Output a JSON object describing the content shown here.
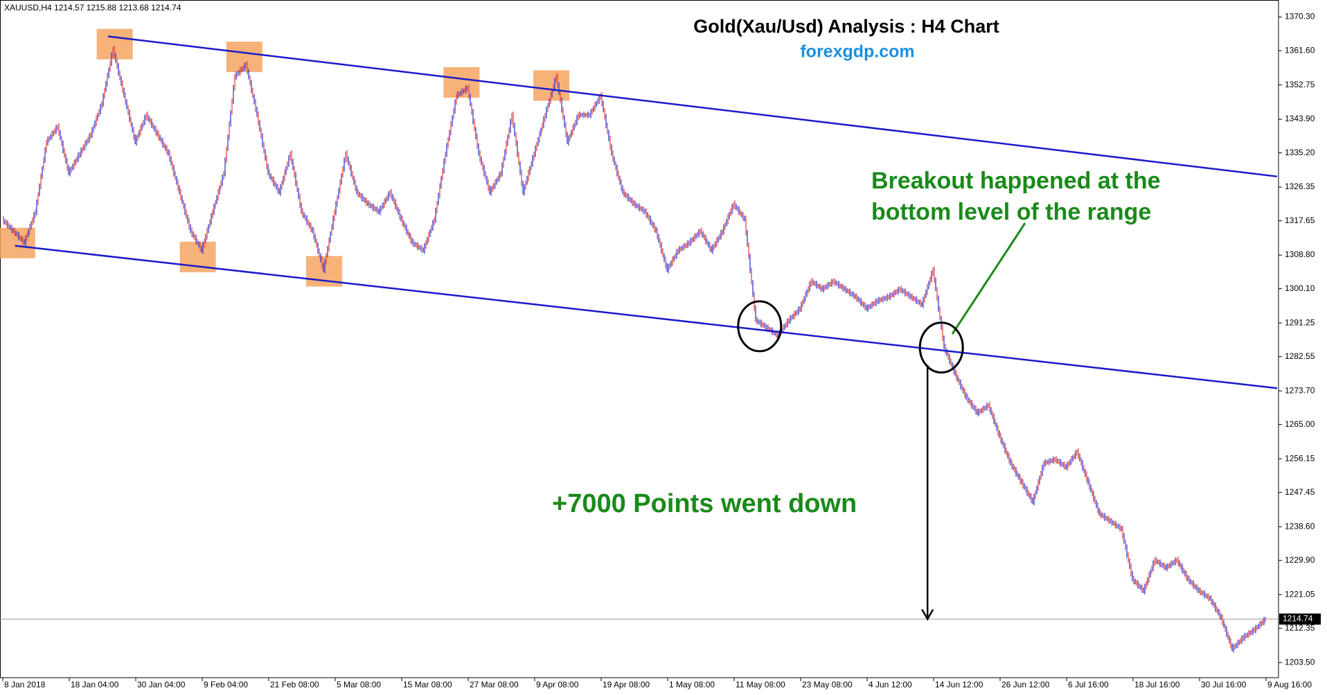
{
  "chart_data": {
    "type": "price-bars",
    "title": "Gold(Xau/Usd) Analysis : H4 Chart",
    "subtitle": "forexgdp.com",
    "symbol_info": "XAUUSD,H4  1214.57 1215.88 1213.68 1214.74",
    "annotations": [
      "Breakout happened at the",
      "bottom level of the range",
      "+7000 Points went down"
    ],
    "categories": [
      "8 Jan 2018",
      null,
      null,
      null,
      null,
      null,
      "18 Jan 04:00",
      null,
      null,
      null,
      null,
      null,
      "30 Jan 04:00",
      null,
      null,
      null,
      null,
      null,
      "9 Feb 04:00",
      null,
      null,
      null,
      null,
      null,
      "21 Feb 08:00",
      null,
      null,
      null,
      null,
      null,
      "5 Mar 08:00",
      null,
      null,
      null,
      null,
      null,
      "15 Mar 08:00",
      null,
      null,
      null,
      null,
      null,
      "27 Mar 08:00",
      null,
      null,
      null,
      null,
      null,
      "9 Apr 08:00",
      null,
      null,
      null,
      null,
      null,
      "19 Apr 08:00",
      null,
      null,
      null,
      null,
      null,
      "1 May 08:00",
      null,
      null,
      null,
      null,
      null,
      "11 May 08:00",
      null,
      null,
      null,
      null,
      null,
      "23 May 08:00",
      null,
      null,
      null,
      null,
      null,
      "4 Jun 12:00",
      null,
      null,
      null,
      null,
      null,
      "14 Jun 12:00",
      null,
      null,
      null,
      null,
      null,
      "26 Jun 12:00",
      null,
      null,
      null,
      null,
      null,
      "6 Jul 16:00",
      null,
      null,
      null,
      null,
      null,
      "18 Jul 16:00",
      null,
      null,
      null,
      null,
      null,
      "30 Jul 16:00",
      null,
      null,
      null,
      null,
      null,
      "9 Aug 16:00"
    ],
    "values": [
      1318,
      1315,
      1312,
      1320,
      1338,
      1342,
      1330,
      1335,
      1340,
      1348,
      1362,
      1350,
      1338,
      1345,
      1340,
      1335,
      1325,
      1315,
      1310,
      1320,
      1330,
      1355,
      1358,
      1345,
      1330,
      1325,
      1335,
      1320,
      1315,
      1305,
      1320,
      1335,
      1325,
      1322,
      1320,
      1325,
      1318,
      1312,
      1310,
      1318,
      1335,
      1350,
      1352,
      1335,
      1325,
      1330,
      1345,
      1325,
      1335,
      1345,
      1355,
      1338,
      1345,
      1345,
      1350,
      1335,
      1325,
      1322,
      1320,
      1315,
      1305,
      1310,
      1312,
      1315,
      1310,
      1315,
      1322,
      1318,
      1292,
      1290,
      1288,
      1292,
      1295,
      1302,
      1300,
      1302,
      1300,
      1298,
      1295,
      1297,
      1298,
      1300,
      1298,
      1296,
      1305,
      1285,
      1278,
      1272,
      1268,
      1270,
      1262,
      1255,
      1250,
      1245,
      1255,
      1256,
      1254,
      1258,
      1250,
      1242,
      1240,
      1238,
      1225,
      1222,
      1230,
      1228,
      1230,
      1225,
      1222,
      1220,
      1215,
      1207,
      1210,
      1212,
      1214.74
    ],
    "up_color": "#3535d0",
    "down_color": "#e04848",
    "ylim": [
      1199.6,
      1374.7
    ],
    "yticks": [
      {
        "value": 1370.3,
        "label": "1370.30"
      },
      {
        "value": 1361.6,
        "label": "1361.60"
      },
      {
        "value": 1352.75,
        "label": "1352.75"
      },
      {
        "value": 1343.9,
        "label": "1343.90"
      },
      {
        "value": 1335.2,
        "label": "1335.20"
      },
      {
        "value": 1326.35,
        "label": "1326.35"
      },
      {
        "value": 1317.65,
        "label": "1317.65"
      },
      {
        "value": 1308.8,
        "label": "1308.80"
      },
      {
        "value": 1300.1,
        "label": "1300.10"
      },
      {
        "value": 1291.25,
        "label": "1291.25"
      },
      {
        "value": 1282.55,
        "label": "1282.55"
      },
      {
        "value": 1273.7,
        "label": "1273.70"
      },
      {
        "value": 1265,
        "label": "1265.00"
      },
      {
        "value": 1256.15,
        "label": "1256.15"
      },
      {
        "value": 1247.45,
        "label": "1247.45"
      },
      {
        "value": 1238.6,
        "label": "1238.60"
      },
      {
        "value": 1229.9,
        "label": "1229.90"
      },
      {
        "value": 1221.05,
        "label": "1221.05"
      },
      {
        "value": 1212.35,
        "label": "1212.35"
      },
      {
        "value": 1203.5,
        "label": "1203.50"
      }
    ],
    "last_price": {
      "value": 1214.74,
      "label": "1214.74"
    },
    "trendlines": [
      {
        "x": [
          9.5,
          115
        ],
        "y": [
          1365.3,
          1329.1
        ],
        "color": "#1a1acc"
      },
      {
        "x": [
          1.1,
          115
        ],
        "y": [
          1311.2,
          1274.4
        ],
        "color": "#1a1acc"
      }
    ],
    "highlights": {
      "x": [
        1.3,
        10.1,
        17.6,
        21.8,
        29.0,
        41.4,
        49.5
      ],
      "y": [
        1311.9,
        1363.3,
        1308.3,
        1360,
        1304.6,
        1353.4,
        1352.6
      ],
      "color": "#f4a460"
    },
    "circles": {
      "x": [
        68.3,
        84.7
      ],
      "y": [
        1290.4,
        1284.9
      ]
    }
  }
}
